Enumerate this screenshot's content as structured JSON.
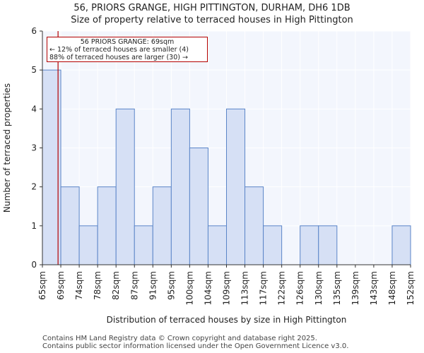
{
  "header": {
    "title": "56, PRIORS GRANGE, HIGH PITTINGTON, DURHAM, DH6 1DB",
    "subtitle": "Size of property relative to terraced houses in High Pittington"
  },
  "annotation": {
    "line1": "56 PRIORS GRANGE: 69sqm",
    "line2": "← 12% of terraced houses are smaller (4)",
    "line3": "88% of terraced houses are larger (30) →"
  },
  "footer": {
    "line1": "Contains HM Land Registry data © Crown copyright and database right 2025.",
    "line2": "Contains public sector information licensed under the Open Government Licence v3.0."
  },
  "colors": {
    "bar_fill": "#d6e0f5",
    "bar_stroke": "#5b85c8",
    "marker": "#b30000",
    "plot_bg": "#f3f6fd",
    "grid": "#ffffff"
  },
  "chart_data": {
    "type": "bar",
    "title": "56, PRIORS GRANGE, HIGH PITTINGTON, DURHAM, DH6 1DB",
    "subtitle": "Size of property relative to terraced houses in High Pittington",
    "xlabel": "Distribution of terraced houses by size in High Pittington",
    "ylabel": "Number of terraced properties",
    "bin_edges": [
      "65sqm",
      "69sqm",
      "74sqm",
      "78sqm",
      "82sqm",
      "87sqm",
      "91sqm",
      "95sqm",
      "100sqm",
      "104sqm",
      "109sqm",
      "113sqm",
      "117sqm",
      "122sqm",
      "126sqm",
      "130sqm",
      "135sqm",
      "139sqm",
      "143sqm",
      "148sqm",
      "152sqm"
    ],
    "values": [
      5,
      2,
      1,
      2,
      4,
      1,
      2,
      4,
      3,
      1,
      4,
      2,
      1,
      0,
      1,
      1,
      0,
      0,
      0,
      1
    ],
    "ylim": [
      0,
      6
    ],
    "yticks": [
      0,
      1,
      2,
      3,
      4,
      5,
      6
    ],
    "marker_value_sqm": 69,
    "marker_bin_position": 0.85,
    "grid": true
  }
}
